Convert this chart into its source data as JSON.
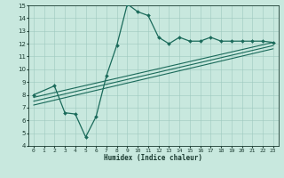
{
  "xlabel": "Humidex (Indice chaleur)",
  "ylabel": "",
  "bg_color": "#c8e8de",
  "grid_color": "#9ec8be",
  "line_color": "#1a6a5a",
  "xlim": [
    -0.5,
    23.5
  ],
  "ylim": [
    4,
    15
  ],
  "xticks": [
    0,
    1,
    2,
    3,
    4,
    5,
    6,
    7,
    8,
    9,
    10,
    11,
    12,
    13,
    14,
    15,
    16,
    17,
    18,
    19,
    20,
    21,
    22,
    23
  ],
  "yticks": [
    4,
    5,
    6,
    7,
    8,
    9,
    10,
    11,
    12,
    13,
    14,
    15
  ],
  "series": [
    {
      "x": [
        0,
        2,
        3,
        4,
        5,
        6,
        7,
        8,
        9,
        10,
        11,
        12,
        13,
        14,
        15,
        16,
        17,
        18,
        19,
        20,
        21,
        22,
        23
      ],
      "y": [
        8.0,
        8.7,
        6.6,
        6.5,
        4.7,
        6.3,
        9.5,
        11.9,
        15.1,
        14.5,
        14.2,
        12.5,
        12.0,
        12.5,
        12.2,
        12.2,
        12.5,
        12.2,
        12.2,
        12.2,
        12.2,
        12.2,
        12.1
      ],
      "marker": "D",
      "markersize": 2.0,
      "linewidth": 0.9
    },
    {
      "x": [
        0,
        23
      ],
      "y": [
        7.8,
        12.1
      ],
      "marker": null,
      "markersize": 0,
      "linewidth": 0.8
    },
    {
      "x": [
        0,
        23
      ],
      "y": [
        7.5,
        11.85
      ],
      "marker": null,
      "markersize": 0,
      "linewidth": 0.8
    },
    {
      "x": [
        0,
        23
      ],
      "y": [
        7.2,
        11.6
      ],
      "marker": null,
      "markersize": 0,
      "linewidth": 0.8
    }
  ]
}
